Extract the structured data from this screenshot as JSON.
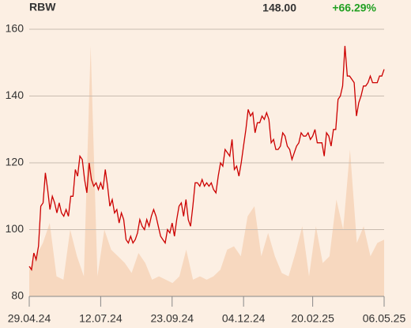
{
  "chart_data": {
    "type": "line",
    "title": "RBW",
    "last_price": "148.00",
    "change": "+66.29%",
    "x": [
      0,
      1,
      2,
      3,
      4,
      5,
      6,
      7,
      8,
      9,
      10,
      11,
      12,
      13,
      14,
      15,
      16,
      17,
      18,
      19,
      20,
      21,
      22,
      23,
      24,
      25,
      26,
      27,
      28,
      29,
      30,
      31,
      32,
      33,
      34,
      35,
      36,
      37,
      38,
      39,
      40,
      41,
      42,
      43,
      44,
      45,
      46,
      47,
      48,
      49,
      50,
      51,
      52,
      53,
      54,
      55,
      56,
      57,
      58,
      59,
      60,
      61,
      62,
      63,
      64,
      65,
      66,
      67,
      68,
      69,
      70,
      71,
      72,
      73,
      74,
      75,
      76,
      77,
      78,
      79,
      80,
      81,
      82,
      83,
      84,
      85,
      86,
      87,
      88,
      89,
      90,
      91,
      92,
      93,
      94,
      95,
      96,
      97,
      98,
      99,
      100,
      101,
      102,
      103,
      104,
      105,
      106,
      107,
      108,
      109,
      110,
      111,
      112,
      113,
      114,
      115,
      116,
      117,
      118,
      119,
      120,
      121,
      122,
      123,
      124,
      125,
      126,
      127,
      128,
      129,
      130,
      131,
      132,
      133,
      134,
      135,
      136,
      137,
      138,
      139,
      140,
      141,
      142,
      143,
      144,
      145,
      146,
      147,
      148,
      149,
      150,
      151,
      152,
      153,
      154
    ],
    "series": [
      {
        "color": "#cc0000",
        "values": [
          89,
          88,
          93,
          91,
          95,
          107,
          108,
          117,
          112,
          106,
          110,
          108,
          105,
          108,
          105,
          104,
          106,
          104,
          110,
          110,
          118,
          116,
          122,
          121,
          115,
          111,
          120,
          115,
          113,
          114,
          112,
          114,
          112,
          118,
          113,
          107,
          109,
          105,
          106,
          102,
          105,
          103,
          97,
          96,
          98,
          96,
          97,
          99,
          103,
          101,
          100,
          103,
          101,
          104,
          106,
          104,
          101,
          98,
          97,
          96,
          100,
          99,
          102,
          98,
          103,
          107,
          108,
          104,
          109,
          103,
          101,
          107,
          114,
          114,
          113,
          115,
          113,
          114,
          113,
          114,
          112,
          111,
          116,
          120,
          119,
          124,
          123,
          122,
          127,
          118,
          119,
          116,
          120,
          125,
          130,
          136,
          134,
          135,
          129,
          132,
          132,
          134,
          133,
          135,
          133,
          126,
          127,
          124,
          124,
          125,
          129,
          128,
          125,
          124,
          121,
          123,
          125,
          126,
          129,
          128,
          128,
          129,
          127,
          128,
          130,
          126,
          126,
          126,
          122,
          129,
          128,
          125,
          130,
          130,
          139,
          140,
          143,
          155,
          146,
          146,
          145,
          144,
          134,
          138,
          140,
          143,
          143,
          144,
          146,
          144,
          144,
          144,
          146,
          146,
          148
        ]
      }
    ],
    "area": {
      "color": "#f7d8bf",
      "values": [
        88,
        92,
        96,
        102,
        86,
        85,
        100,
        92,
        86,
        155,
        86,
        100,
        94,
        92,
        90,
        87,
        93,
        90,
        85,
        86,
        85,
        84,
        86,
        94,
        85,
        86,
        85,
        86,
        88,
        94,
        95,
        92,
        104,
        107,
        92,
        99,
        92,
        87,
        86,
        93,
        101,
        86,
        101,
        90,
        92,
        109,
        100,
        124,
        96,
        101,
        92,
        96,
        97
      ]
    },
    "xlim": [
      0,
      154
    ],
    "ylim": [
      80,
      160
    ],
    "yticks": [
      80,
      100,
      120,
      140,
      160
    ],
    "xticks": [
      {
        "value": 0,
        "label": "29.04.24"
      },
      {
        "value": 31,
        "label": "12.07.24"
      },
      {
        "value": 62,
        "label": "23.09.24"
      },
      {
        "value": 93,
        "label": "04.12.24"
      },
      {
        "value": 123,
        "label": "20.02.25"
      },
      {
        "value": 154,
        "label": "06.05.25"
      }
    ],
    "grid": true
  }
}
